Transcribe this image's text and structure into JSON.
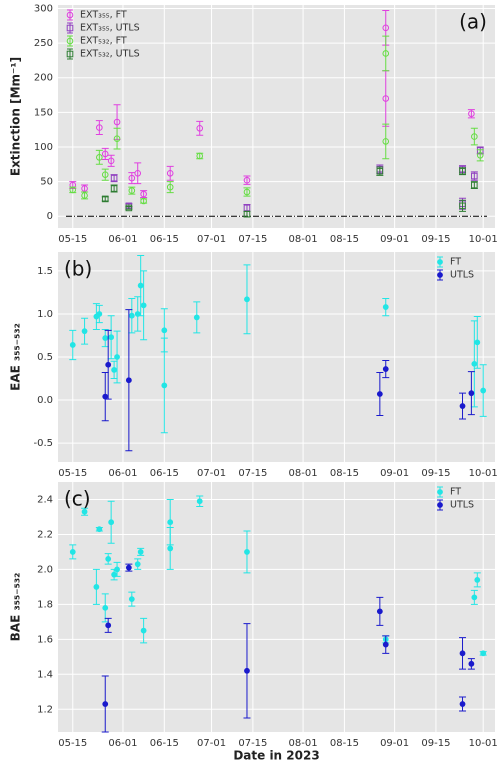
{
  "chart_data": [
    {
      "type": "errorbar",
      "panel_label": "(a)",
      "ylabel": "Extinction [Mm⁻¹]",
      "legend": "upper left",
      "grid": true,
      "xlim": [
        "05-10",
        "10-05"
      ],
      "xticks": [
        "05-15",
        "06-01",
        "06-15",
        "07-01",
        "07-15",
        "08-01",
        "08-15",
        "09-01",
        "09-15",
        "10-01"
      ],
      "ylim": [
        -17,
        305
      ],
      "yticks": [
        0,
        50,
        100,
        150,
        200,
        250,
        300
      ],
      "reference_line": 0,
      "series": [
        {
          "name": "EXT₃₅₅, FT",
          "color": "#e040e0",
          "marker": "circle",
          "filled": false,
          "x": [
            "05-15",
            "05-19",
            "05-24",
            "05-26",
            "05-28",
            "05-30",
            "06-04",
            "06-06",
            "06-08",
            "06-17",
            "06-27",
            "07-13",
            "08-29",
            "08-29",
            "09-27"
          ],
          "values": [
            45,
            40,
            128,
            90,
            80,
            136,
            55,
            62,
            32,
            62,
            127,
            52,
            272,
            170,
            148
          ],
          "errors": [
            5,
            5,
            10,
            8,
            8,
            25,
            8,
            15,
            5,
            10,
            10,
            6,
            25,
            40,
            6
          ]
        },
        {
          "name": "EXT₃₅₅, UTLS",
          "color": "#9040c0",
          "marker": "square",
          "filled": false,
          "x": [
            "05-29",
            "06-03",
            "07-13",
            "08-27",
            "09-24",
            "09-24",
            "09-28",
            "09-30"
          ],
          "values": [
            55,
            15,
            12,
            68,
            18,
            68,
            58,
            95
          ],
          "errors": [
            5,
            3,
            5,
            6,
            8,
            5,
            6,
            5
          ]
        },
        {
          "name": "EXT₅₃₂, FT",
          "color": "#66dd44",
          "marker": "circle",
          "filled": false,
          "x": [
            "05-15",
            "05-19",
            "05-24",
            "05-26",
            "05-30",
            "06-04",
            "06-08",
            "06-17",
            "06-27",
            "07-13",
            "08-29",
            "08-29",
            "09-28",
            "09-30"
          ],
          "values": [
            38,
            30,
            85,
            60,
            112,
            37,
            22,
            42,
            87,
            35,
            235,
            108,
            115,
            88
          ],
          "errors": [
            4,
            5,
            10,
            8,
            15,
            5,
            3,
            8,
            4,
            6,
            25,
            25,
            12,
            8
          ]
        },
        {
          "name": "EXT₅₃₂, UTLS",
          "color": "#2e7d32",
          "marker": "square",
          "filled": false,
          "x": [
            "05-26",
            "05-29",
            "06-03",
            "07-13",
            "08-27",
            "09-24",
            "09-24",
            "09-28"
          ],
          "values": [
            25,
            40,
            12,
            3,
            65,
            15,
            65,
            45
          ],
          "errors": [
            3,
            5,
            2,
            4,
            6,
            8,
            5,
            5
          ]
        }
      ]
    },
    {
      "type": "errorbar",
      "panel_label": "(b)",
      "ylabel": "EAE ₃₅₅₋₅₃₂",
      "legend": "upper right",
      "grid": true,
      "xlim": [
        "05-10",
        "10-05"
      ],
      "xticks": [
        "05-15",
        "06-01",
        "06-15",
        "07-01",
        "07-15",
        "08-01",
        "08-15",
        "09-01",
        "09-15",
        "10-01"
      ],
      "ylim": [
        -0.72,
        1.72
      ],
      "yticks": [
        -0.5,
        {
          "value": 0,
          "label": "0.0"
        },
        0.5,
        {
          "value": 1,
          "label": "1.0"
        },
        1.5
      ],
      "series": [
        {
          "name": "FT",
          "color": "#22e5e5",
          "marker": "circle",
          "filled": true,
          "x": [
            "05-15",
            "05-19",
            "05-23",
            "05-24",
            "05-26",
            "05-28",
            "05-29",
            "05-30",
            "06-04",
            "06-06",
            "06-07",
            "06-08",
            "06-15",
            "06-15",
            "06-26",
            "07-13",
            "08-29",
            "09-28",
            "09-29",
            "10-01"
          ],
          "values": [
            0.64,
            0.8,
            0.97,
            1.0,
            0.72,
            0.73,
            0.35,
            0.5,
            0.98,
            1.0,
            1.33,
            1.1,
            0.81,
            0.17,
            0.96,
            1.17,
            1.08,
            0.42,
            0.67,
            0.11
          ],
          "errors": [
            0.17,
            0.15,
            0.15,
            0.1,
            0.1,
            0.25,
            0.1,
            0.3,
            0.2,
            0.2,
            0.35,
            0.4,
            0.25,
            0.55,
            0.18,
            0.4,
            0.1,
            0.5,
            0.3,
            0.3
          ]
        },
        {
          "name": "UTLS",
          "color": "#1a1acc",
          "marker": "circle",
          "filled": true,
          "x": [
            "05-26",
            "05-27",
            "06-03",
            "08-27",
            "08-29",
            "09-24",
            "09-27"
          ],
          "values": [
            0.04,
            0.41,
            0.23,
            0.07,
            0.36,
            -0.07,
            0.08
          ],
          "errors": [
            0.28,
            0.4,
            0.82,
            0.25,
            0.1,
            0.15,
            0.25
          ]
        }
      ]
    },
    {
      "type": "errorbar",
      "panel_label": "(c)",
      "ylabel": "BAE ₃₅₅₋₅₃₂",
      "xlabel": "Date in 2023",
      "legend": "upper right",
      "grid": true,
      "xlim": [
        "05-10",
        "10-05"
      ],
      "xticks": [
        "05-15",
        "06-01",
        "06-15",
        "07-01",
        "07-15",
        "08-01",
        "08-15",
        "09-01",
        "09-15",
        "10-01"
      ],
      "ylim": [
        1.07,
        2.5
      ],
      "yticks": [
        1.2,
        1.4,
        1.6,
        1.8,
        {
          "value": 2,
          "label": "2.0"
        },
        2.2,
        2.4
      ],
      "series": [
        {
          "name": "FT",
          "color": "#22e5e5",
          "marker": "circle",
          "filled": true,
          "x": [
            "05-15",
            "05-19",
            "05-23",
            "05-24",
            "05-26",
            "05-27",
            "05-28",
            "05-29",
            "05-30",
            "06-04",
            "06-06",
            "06-07",
            "06-08",
            "06-17",
            "06-17",
            "06-27",
            "07-13",
            "08-29",
            "09-28",
            "09-29",
            "10-01"
          ],
          "values": [
            2.1,
            2.33,
            1.9,
            2.23,
            1.78,
            2.06,
            2.27,
            1.97,
            2.0,
            1.83,
            2.03,
            2.1,
            1.65,
            2.27,
            2.12,
            2.39,
            2.1,
            1.6,
            1.84,
            1.94,
            1.52
          ],
          "errors": [
            0.04,
            0.02,
            0.1,
            0.01,
            0.08,
            0.03,
            0.12,
            0.03,
            0.04,
            0.04,
            0.03,
            0.02,
            0.07,
            0.13,
            0.12,
            0.03,
            0.12,
            0.02,
            0.04,
            0.04,
            0.01
          ]
        },
        {
          "name": "UTLS",
          "color": "#1a1acc",
          "marker": "circle",
          "filled": true,
          "x": [
            "05-26",
            "05-27",
            "06-03",
            "07-13",
            "08-27",
            "08-29",
            "09-24",
            "09-24",
            "09-27"
          ],
          "values": [
            1.23,
            1.68,
            2.01,
            1.42,
            1.76,
            1.57,
            1.52,
            1.23,
            1.46
          ],
          "errors": [
            0.16,
            0.04,
            0.02,
            0.27,
            0.08,
            0.05,
            0.09,
            0.04,
            0.03
          ]
        }
      ]
    }
  ]
}
